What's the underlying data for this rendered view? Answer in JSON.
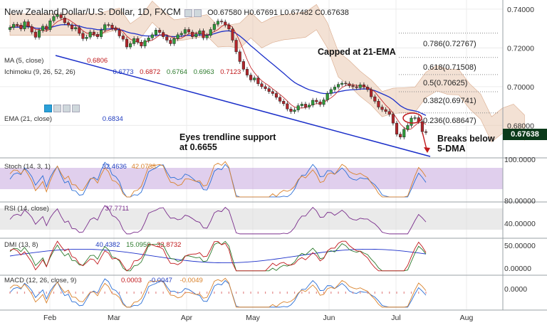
{
  "header": {
    "symbol": "New Zealand Dollar/U.S. Dollar, 1D, FXCM",
    "ohlc": "O0.67580 H0.67691 L0.67482 C0.67638"
  },
  "legends": {
    "ma": {
      "label": "MA (5, close)",
      "v1": "0.6806"
    },
    "ichimoku": {
      "label": "Ichimoku (9, 26, 52, 26)",
      "v1": "0.6773",
      "v2": "0.6872",
      "v3": "0.6764",
      "v4": "0.6963",
      "v5": "0.7123"
    },
    "ema": {
      "label": "EMA (21, close)",
      "v1": "0.6834"
    },
    "stoch": {
      "label": "Stoch (14, 3, 1)",
      "v1": "32.4636",
      "v2": "42.0738"
    },
    "rsi": {
      "label": "RSI (14, close)",
      "v1": "37.7711"
    },
    "dmi": {
      "label": "DMI (13, 8)",
      "v1": "40.4382",
      "v2": "15.0950",
      "v3": "32.8732"
    },
    "macd": {
      "label": "MACD (12, 26, close, 9)",
      "v1": "0.0003",
      "v2": "-0.0047",
      "v3": "-0.0049"
    }
  },
  "annotations": {
    "capped": "Capped at 21-EMA",
    "eyes_line1": "Eyes trendline support",
    "eyes_line2": "at 0.6655",
    "breaks_line1": "Breaks below",
    "breaks_line2": "5-DMA"
  },
  "fib_levels": [
    {
      "label": "0.786(0.72767)",
      "value": 0.72767
    },
    {
      "label": "0.618(0.71508)",
      "value": 0.71508
    },
    {
      "label": "0.5(0.70625)",
      "value": 0.70625
    },
    {
      "label": "0.382(0.69741)",
      "value": 0.69741
    },
    {
      "label": "0.236(0.68647)",
      "value": 0.68647
    }
  ],
  "last_price_label": "0.67638",
  "colors": {
    "candle_up": "#2e9b3a",
    "candle_down": "#b3262b",
    "ema": "#1b2fc9",
    "ma": "#c0181b",
    "cloud": "#e9c8b0",
    "stoch_band": "#c7a8df",
    "rsi_band": "#d9d9d9",
    "trendline": "#1b2fc9"
  },
  "chart_data": {
    "type": "candlestick",
    "instrument": "New Zealand Dollar/U.S. Dollar",
    "timeframe": "1D",
    "x_tick_labels": [
      "Feb",
      "Mar",
      "Apr",
      "May",
      "Jun",
      "Jul",
      "Aug"
    ],
    "y_tick_labels": [
      "0.74000",
      "0.72000",
      "0.70000",
      "0.68000"
    ],
    "ylim": [
      0.664,
      0.744
    ],
    "close_series": [
      0.7305,
      0.7322,
      0.7318,
      0.7298,
      0.7335,
      0.731,
      0.7282,
      0.7255,
      0.729,
      0.7312,
      0.7295,
      0.734,
      0.7362,
      0.7372,
      0.7355,
      0.733,
      0.7318,
      0.7298,
      0.7305,
      0.7275,
      0.7248,
      0.7256,
      0.7282,
      0.727,
      0.7258,
      0.7292,
      0.732,
      0.7318,
      0.7302,
      0.7292,
      0.7262,
      0.7245,
      0.7205,
      0.7222,
      0.7248,
      0.723,
      0.721,
      0.7238,
      0.7252,
      0.7268,
      0.7292,
      0.728,
      0.7258,
      0.724,
      0.7222,
      0.7248,
      0.7268,
      0.7275,
      0.7295,
      0.7282,
      0.7258,
      0.7272,
      0.7288,
      0.7252,
      0.7265,
      0.7295,
      0.7322,
      0.7338,
      0.7334,
      0.7318,
      0.7298,
      0.724,
      0.718,
      0.713,
      0.709,
      0.706,
      0.7035,
      0.7045,
      0.7015,
      0.7,
      0.699,
      0.6975,
      0.6965,
      0.6945,
      0.6925,
      0.6912,
      0.6885,
      0.6872,
      0.688,
      0.6902,
      0.691,
      0.6895,
      0.6905,
      0.693,
      0.6922,
      0.6908,
      0.6932,
      0.6965,
      0.6985,
      0.6998,
      0.7012,
      0.7018,
      0.7015,
      0.7005,
      0.7,
      0.6995,
      0.701,
      0.6998,
      0.6985,
      0.6948,
      0.6925,
      0.6895,
      0.6882,
      0.6872,
      0.6858,
      0.6812,
      0.6755,
      0.674,
      0.678,
      0.68,
      0.6838,
      0.684,
      0.682,
      0.6768,
      0.6764
    ],
    "ema21_last": 0.6834,
    "ma5_last": 0.6806,
    "trendline_support": 0.6655,
    "panels": [
      {
        "name": "Stoch (14, 3, 1)",
        "values": {
          "%K": 32.4636,
          "%D": 42.0738
        },
        "y_tick_labels": [
          "100.0000"
        ]
      },
      {
        "name": "RSI (14, close)",
        "values": {
          "RSI": 37.7711
        },
        "y_tick_labels": [
          "80.00000",
          "40.00000"
        ]
      },
      {
        "name": "DMI (13, 8)",
        "values": {
          "ADX": 40.4382,
          "+DI": 15.095,
          "-DI": 32.8732
        },
        "y_tick_labels": [
          "50.00000",
          "0.00000"
        ]
      },
      {
        "name": "MACD (12, 26, close, 9)",
        "values": {
          "Histogram": 0.0003,
          "MACD": -0.0047,
          "Signal": -0.0049
        },
        "y_tick_labels": [
          "0.0000"
        ]
      }
    ]
  }
}
